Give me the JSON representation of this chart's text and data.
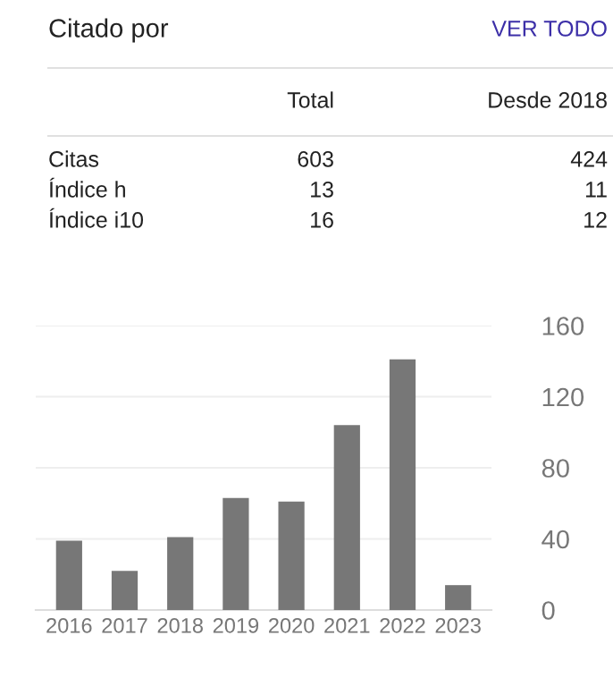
{
  "chart_data": {
    "type": "bar",
    "title": "Citado por",
    "annotations": [
      "VER TODO",
      "Total",
      "Desde 2018",
      "Citas",
      "603",
      "424",
      "Índice h",
      "13",
      "11",
      "Índice i10",
      "16",
      "12"
    ],
    "categories": [
      "2016",
      "2017",
      "2018",
      "2019",
      "2020",
      "2021",
      "2022",
      "2023"
    ],
    "values": [
      39,
      22,
      41,
      63,
      61,
      104,
      141,
      14
    ],
    "color": "#777777",
    "ylim": [
      0,
      160
    ],
    "yticks": [
      0,
      40,
      80,
      120,
      160
    ],
    "grid": "y"
  }
}
